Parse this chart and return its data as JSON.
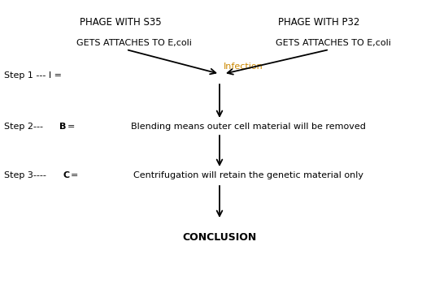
{
  "bg_color": "#ffffff",
  "text_color": "#000000",
  "arrow_color": "#000000",
  "phage_s35": "PHAGE WITH S35",
  "phage_p32": "PHAGE WITH P32",
  "attaches_left": "GETS ATTACHES TO E,coli",
  "attaches_right": "GETS ATTACHES TO E,coli",
  "infection_label": "Infection",
  "infection_color": "#cc8800",
  "step1_prefix": "Step 1 --- I =",
  "step2_prefix": "Step 2--- ",
  "step2_bold": "B",
  "step2_suffix": "=",
  "step3_prefix": "Step 3----",
  "step3_bold": "C",
  "step3_suffix": "=",
  "step2_desc": "Blending means outer cell material will be removed",
  "step3_desc": "Centrifugation will retain the genetic material only",
  "conclusion": "CONCLUSION",
  "fig_width": 5.35,
  "fig_height": 3.56,
  "dpi": 100
}
